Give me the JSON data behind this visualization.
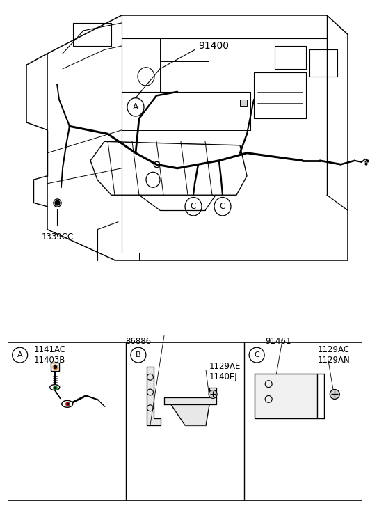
{
  "bg_color": "#ffffff",
  "line_color": "#000000",
  "text_color": "#000000",
  "title_main": "91400",
  "label_1339CC": "1339CC",
  "box_A_labels": [
    "A",
    "1141AC",
    "11403B"
  ],
  "box_B_labels": [
    "B",
    "86886",
    "1129AE",
    "1140EJ"
  ],
  "box_C_labels": [
    "C",
    "91461",
    "1129AC",
    "1129AN"
  ],
  "figsize": [
    5.32,
    7.27
  ],
  "dpi": 100
}
